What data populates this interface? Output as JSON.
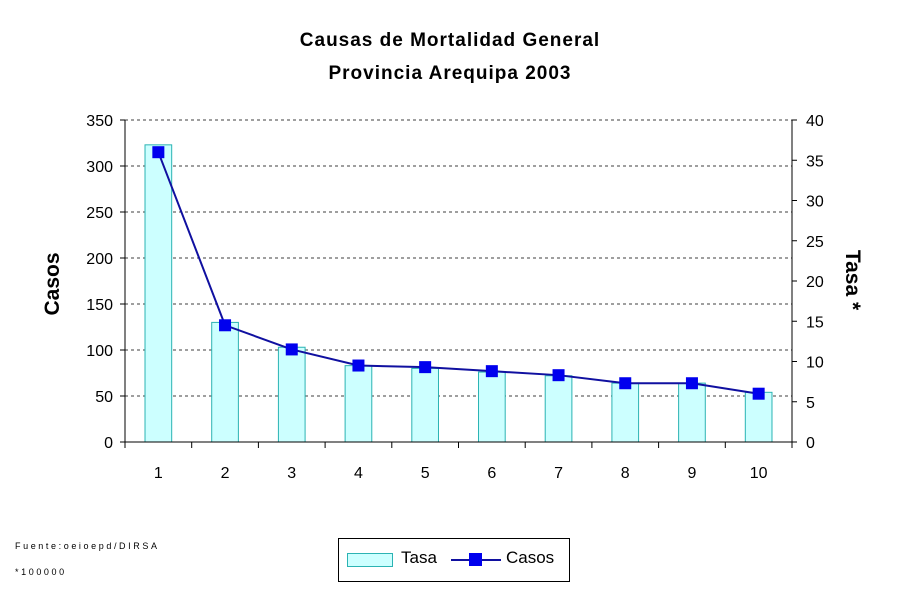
{
  "chart_data": {
    "type": "bar+line",
    "title": "Causas de Mortalidad General",
    "subtitle": "Provincia Arequipa 2003",
    "categories": [
      "1",
      "2",
      "3",
      "4",
      "5",
      "6",
      "7",
      "8",
      "9",
      "10"
    ],
    "y_left": {
      "label": "Casos",
      "min": 0,
      "max": 350,
      "ticks": [
        0,
        50,
        100,
        150,
        200,
        250,
        300,
        350
      ]
    },
    "y_right": {
      "label": "Tasa *",
      "min": 0,
      "max": 40,
      "ticks": [
        0,
        5,
        10,
        15,
        20,
        25,
        30,
        35,
        40
      ]
    },
    "series": [
      {
        "name": "Tasa",
        "type": "bar",
        "axis": "left",
        "color": "#ccffff",
        "border": "#2bb3b3",
        "values": [
          323,
          130,
          103,
          83,
          80,
          76,
          72,
          64,
          64,
          54
        ]
      },
      {
        "name": "Casos",
        "type": "line",
        "axis": "right",
        "color": "#1010a0",
        "marker": "#0000ee",
        "values": [
          36,
          14.5,
          11.5,
          9.5,
          9.3,
          8.8,
          8.3,
          7.3,
          7.3,
          6.0
        ]
      }
    ],
    "grid": "horizontal dashed",
    "legend": "bottom-center"
  },
  "notes": {
    "source": "Fuente:oeioepd/DIRSA",
    "footnote": "*100000"
  }
}
